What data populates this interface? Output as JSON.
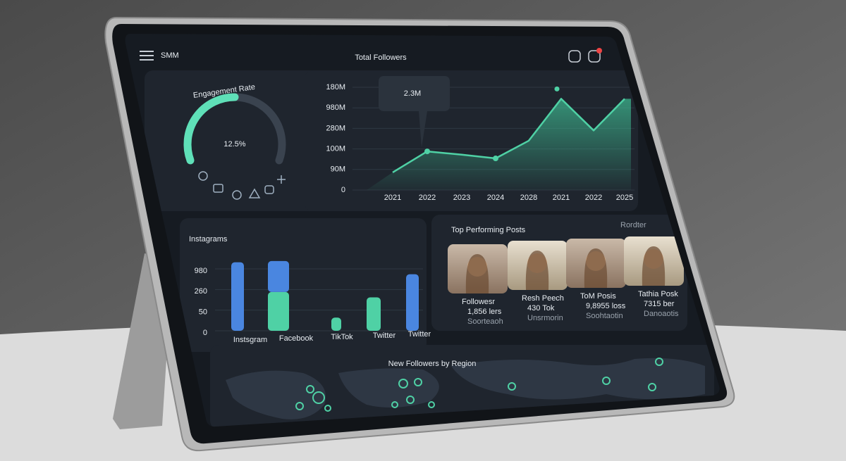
{
  "header": {
    "title": "SMM",
    "center_title": "Total Followers"
  },
  "chart_data": [
    {
      "type": "gauge",
      "title": "Engagement Rate",
      "values": [
        12.5
      ],
      "value_labels": [
        "12.5%"
      ],
      "ylim": [
        0,
        25
      ],
      "color": "#5fe0b8"
    },
    {
      "type": "area",
      "annotation": "2.3M",
      "categories": [
        "2021",
        "2022",
        "2023",
        "2024",
        "2028",
        "2021",
        "2022",
        "2025"
      ],
      "values": [
        43,
        94,
        86,
        77,
        120,
        222,
        145,
        222
      ],
      "ylim": [
        0,
        250
      ],
      "yticks": [
        0,
        {
          "value": 50,
          "label": "90M"
        },
        {
          "value": 100,
          "label": "100M"
        },
        {
          "value": 150,
          "label": "280M"
        },
        {
          "value": 200,
          "label": "980M"
        },
        {
          "value": 250,
          "label": "180M"
        }
      ],
      "color": "#4fd1a5",
      "grid": true
    },
    {
      "type": "bar",
      "title": "Instagrams",
      "categories": [
        "Instsgram",
        "Facebook",
        "TikTok",
        "Twitter",
        "Twitter"
      ],
      "series": [
        {
          "color": "#4fd1a5",
          "values": [
            null,
            94,
            32,
            81,
            null
          ]
        },
        {
          "color": "#4a86e0",
          "values": [
            166,
            75,
            null,
            null,
            137
          ]
        }
      ],
      "ylim": [
        0,
        175
      ],
      "yticks": [
        0,
        50,
        {
          "value": 100,
          "label": "260"
        },
        {
          "value": 150,
          "label": "980"
        }
      ]
    }
  ],
  "posts": {
    "title": "Top Performing Posts",
    "action": "Rordter",
    "cards": [
      {
        "label": "Followesr",
        "value": "1,856 lers",
        "sub": "Soorteaoh"
      },
      {
        "label": "Resh Peech",
        "value": "430 Tok",
        "sub": "Unsrmorin"
      },
      {
        "label": "ToM Posis",
        "value": "9,8955 loss",
        "sub": "Soohtaotin"
      },
      {
        "label": "Tathia Posk",
        "value": "7315 ber",
        "sub": "Danoaotis"
      }
    ]
  },
  "map": {
    "title": "New Followers by Region"
  }
}
